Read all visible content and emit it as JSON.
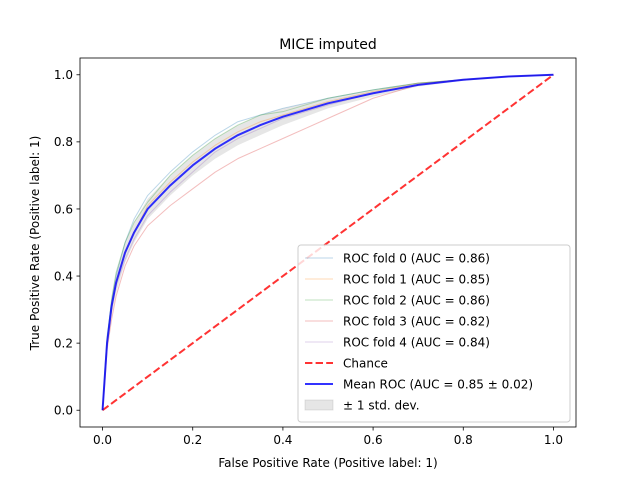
{
  "chart_data": {
    "type": "line",
    "title": "MICE imputed",
    "xlabel": "False Positive Rate (Positive label: 1)",
    "ylabel": "True Positive Rate (Positive label: 1)",
    "xlim": [
      -0.05,
      1.05
    ],
    "ylim": [
      -0.05,
      1.05
    ],
    "xticks": [
      "0.0",
      "0.2",
      "0.4",
      "0.6",
      "0.8",
      "1.0"
    ],
    "yticks": [
      "0.0",
      "0.2",
      "0.4",
      "0.6",
      "0.8",
      "1.0"
    ],
    "grid": false,
    "legend_position": "lower-right",
    "series": [
      {
        "name": "ROC fold 0 (AUC = 0.86)",
        "color": "#1f77b4",
        "style": "thin",
        "x": [
          0,
          0.005,
          0.01,
          0.02,
          0.03,
          0.05,
          0.07,
          0.1,
          0.15,
          0.2,
          0.25,
          0.3,
          0.35,
          0.4,
          0.5,
          0.6,
          0.7,
          0.8,
          0.9,
          1.0
        ],
        "y": [
          0,
          0.12,
          0.22,
          0.32,
          0.4,
          0.5,
          0.57,
          0.64,
          0.71,
          0.77,
          0.82,
          0.86,
          0.88,
          0.9,
          0.93,
          0.955,
          0.975,
          0.985,
          0.995,
          1.0
        ]
      },
      {
        "name": "ROC fold 1 (AUC = 0.85)",
        "color": "#ff7f0e",
        "style": "thin",
        "x": [
          0,
          0.005,
          0.01,
          0.02,
          0.03,
          0.05,
          0.07,
          0.1,
          0.15,
          0.2,
          0.25,
          0.3,
          0.35,
          0.4,
          0.5,
          0.6,
          0.7,
          0.8,
          0.9,
          1.0
        ],
        "y": [
          0,
          0.1,
          0.2,
          0.3,
          0.38,
          0.47,
          0.53,
          0.61,
          0.68,
          0.74,
          0.79,
          0.83,
          0.86,
          0.88,
          0.92,
          0.95,
          0.975,
          0.985,
          0.995,
          1.0
        ]
      },
      {
        "name": "ROC fold 2 (AUC = 0.86)",
        "color": "#2ca02c",
        "style": "thin",
        "x": [
          0,
          0.005,
          0.01,
          0.02,
          0.03,
          0.05,
          0.07,
          0.1,
          0.15,
          0.2,
          0.25,
          0.3,
          0.35,
          0.4,
          0.5,
          0.6,
          0.7,
          0.8,
          0.9,
          1.0
        ],
        "y": [
          0,
          0.11,
          0.21,
          0.33,
          0.41,
          0.5,
          0.56,
          0.62,
          0.7,
          0.76,
          0.81,
          0.85,
          0.88,
          0.89,
          0.93,
          0.955,
          0.975,
          0.985,
          0.995,
          1.0
        ]
      },
      {
        "name": "ROC fold 3 (AUC = 0.82)",
        "color": "#d62728",
        "style": "thin",
        "x": [
          0,
          0.005,
          0.01,
          0.02,
          0.03,
          0.05,
          0.07,
          0.1,
          0.15,
          0.2,
          0.25,
          0.3,
          0.35,
          0.4,
          0.5,
          0.6,
          0.7,
          0.8,
          0.9,
          1.0
        ],
        "y": [
          0,
          0.08,
          0.18,
          0.27,
          0.34,
          0.43,
          0.49,
          0.55,
          0.61,
          0.66,
          0.71,
          0.75,
          0.78,
          0.81,
          0.87,
          0.93,
          0.97,
          0.985,
          0.995,
          1.0
        ]
      },
      {
        "name": "ROC fold 4 (AUC = 0.84)",
        "color": "#9467bd",
        "style": "thin",
        "x": [
          0,
          0.005,
          0.01,
          0.02,
          0.03,
          0.05,
          0.07,
          0.1,
          0.15,
          0.2,
          0.25,
          0.3,
          0.35,
          0.4,
          0.5,
          0.6,
          0.7,
          0.8,
          0.9,
          1.0
        ],
        "y": [
          0,
          0.1,
          0.19,
          0.3,
          0.37,
          0.45,
          0.51,
          0.58,
          0.65,
          0.71,
          0.77,
          0.81,
          0.84,
          0.87,
          0.91,
          0.945,
          0.97,
          0.985,
          0.995,
          1.0
        ]
      },
      {
        "name": "Chance",
        "color": "#ff0000",
        "style": "dashed",
        "x": [
          0,
          1
        ],
        "y": [
          0,
          1
        ]
      },
      {
        "name": "Mean ROC (AUC = 0.85 ± 0.02)",
        "color": "#0000ff",
        "style": "thick",
        "x": [
          0,
          0.005,
          0.01,
          0.02,
          0.03,
          0.05,
          0.07,
          0.1,
          0.15,
          0.2,
          0.25,
          0.3,
          0.35,
          0.4,
          0.5,
          0.6,
          0.7,
          0.8,
          0.9,
          1.0
        ],
        "y": [
          0,
          0.1,
          0.2,
          0.31,
          0.38,
          0.47,
          0.53,
          0.6,
          0.67,
          0.73,
          0.78,
          0.82,
          0.85,
          0.875,
          0.915,
          0.945,
          0.97,
          0.985,
          0.995,
          1.0
        ]
      },
      {
        "name": "± 1 std. dev.",
        "color": "#808080",
        "style": "band",
        "x": [
          0,
          0.005,
          0.01,
          0.02,
          0.03,
          0.05,
          0.07,
          0.1,
          0.15,
          0.2,
          0.25,
          0.3,
          0.35,
          0.4,
          0.5,
          0.6,
          0.7,
          0.8,
          0.9,
          1.0
        ],
        "lower": [
          0,
          0.085,
          0.18,
          0.28,
          0.35,
          0.44,
          0.5,
          0.57,
          0.64,
          0.7,
          0.75,
          0.79,
          0.82,
          0.85,
          0.9,
          0.935,
          0.965,
          0.982,
          0.993,
          1.0
        ],
        "upper": [
          0,
          0.115,
          0.22,
          0.34,
          0.41,
          0.5,
          0.56,
          0.63,
          0.7,
          0.76,
          0.81,
          0.85,
          0.88,
          0.9,
          0.93,
          0.955,
          0.975,
          0.988,
          0.997,
          1.0
        ]
      }
    ]
  }
}
